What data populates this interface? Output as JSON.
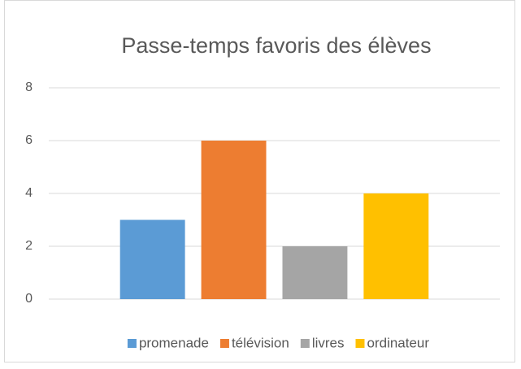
{
  "chart_data": {
    "type": "bar",
    "title": "Passe-temps favoris des élèves",
    "categories": [
      null
    ],
    "series": [
      {
        "name": "promenade",
        "color": "#5b9bd5",
        "values": [
          3
        ]
      },
      {
        "name": "télévision",
        "color": "#ed7d31",
        "values": [
          6
        ]
      },
      {
        "name": "livres",
        "color": "#a5a5a5",
        "values": [
          2
        ]
      },
      {
        "name": "ordinateur",
        "color": "#ffc000",
        "values": [
          4
        ]
      }
    ],
    "ylim": [
      0,
      8
    ],
    "yticks": [
      0,
      2,
      4,
      6,
      8
    ],
    "grid": true,
    "legend": "bottom"
  }
}
